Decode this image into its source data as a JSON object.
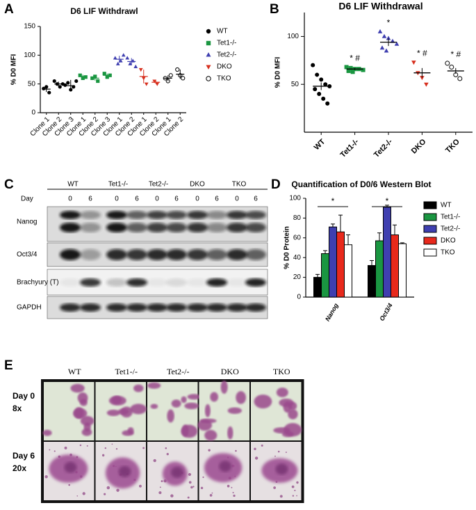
{
  "panel_labels": [
    "A",
    "B",
    "C",
    "D",
    "E"
  ],
  "chart_data": [
    {
      "type": "scatter",
      "title": "D6  LIF Withdrawl",
      "y_label": "%  D0 MFI",
      "categories": [
        "Clone 1",
        "Clone 2",
        "Clone 3",
        "Clone 1",
        "Clone 2",
        "Clone 3",
        "Clone 1",
        "Clone 2",
        "Clone 1",
        "Clone 2",
        "Clone 1",
        "Clone 2"
      ],
      "ylim": [
        0,
        150
      ],
      "yticks": [
        0,
        50,
        100,
        150
      ],
      "series": [
        {
          "name": "WT",
          "color": "#000000",
          "marker": "circle",
          "values": [
            41,
            50,
            47,
            null,
            null,
            null,
            null,
            null,
            null,
            null,
            null,
            null
          ],
          "errors": [
            5,
            4,
            10,
            null,
            null,
            null,
            null,
            null,
            null,
            null,
            null,
            null
          ],
          "points": [
            [
              42,
              45,
              35
            ],
            [
              55,
              50,
              45,
              50
            ],
            [
              48,
              52,
              40,
              45,
              55
            ],
            null,
            null,
            null,
            null,
            null,
            null,
            null,
            null,
            null
          ]
        },
        {
          "name": "Tet1-/-",
          "color": "#1a9641",
          "marker": "square",
          "values": [
            null,
            null,
            null,
            63,
            60,
            65,
            null,
            null,
            null,
            null,
            null,
            null
          ],
          "errors": [
            null,
            null,
            null,
            3,
            4,
            3,
            null,
            null,
            null,
            null,
            null,
            null
          ],
          "points": [
            null,
            null,
            null,
            [
              65,
              60,
              62
            ],
            [
              60,
              63,
              55
            ],
            [
              68,
              62,
              65
            ],
            null,
            null,
            null,
            null,
            null,
            null
          ]
        },
        {
          "name": "Tet2-/-",
          "color": "#3f3fb0",
          "marker": "triangle",
          "values": [
            null,
            null,
            null,
            null,
            null,
            null,
            93,
            89,
            null,
            null,
            null,
            null
          ],
          "errors": [
            null,
            null,
            null,
            null,
            null,
            null,
            6,
            6,
            null,
            null,
            null,
            null
          ],
          "points": [
            null,
            null,
            null,
            null,
            null,
            null,
            [
              95,
              85,
              90,
              100
            ],
            [
              95,
              85,
              90,
              80
            ],
            null,
            null,
            null,
            null
          ]
        },
        {
          "name": "DKO",
          "color": "#d7301f",
          "marker": "triangle-down",
          "values": [
            null,
            null,
            null,
            null,
            null,
            null,
            null,
            null,
            63,
            53,
            null,
            null
          ],
          "errors": [
            null,
            null,
            null,
            null,
            null,
            null,
            null,
            null,
            12,
            3,
            null,
            null
          ],
          "points": [
            null,
            null,
            null,
            null,
            null,
            null,
            null,
            null,
            [
              75,
              60,
              50
            ],
            [
              55,
              50
            ],
            null,
            null
          ]
        },
        {
          "name": "TKO",
          "color": "#000000",
          "marker": "open-circle",
          "values": [
            null,
            null,
            null,
            null,
            null,
            null,
            null,
            null,
            null,
            null,
            60,
            67
          ],
          "errors": [
            null,
            null,
            null,
            null,
            null,
            null,
            null,
            null,
            null,
            null,
            5,
            8
          ],
          "points": [
            null,
            null,
            null,
            null,
            null,
            null,
            null,
            null,
            null,
            null,
            [
              60,
              55,
              65
            ],
            [
              75,
              65,
              60
            ]
          ]
        }
      ]
    },
    {
      "type": "scatter",
      "title": "D6 LIF Withdrawal",
      "y_label": "% D0 MFI",
      "categories": [
        "WT",
        "Tet1-/-",
        "Tet2-/-",
        "DKO",
        "TKO"
      ],
      "ylim": [
        0,
        125
      ],
      "yticks": [
        50,
        100
      ],
      "colors": [
        "#000000",
        "#1a9641",
        "#3f3fb0",
        "#d7301f",
        "#000000"
      ],
      "markers": [
        "circle",
        "square",
        "triangle",
        "triangle-down",
        "open-circle"
      ],
      "values": [
        48,
        66,
        94,
        62,
        64
      ],
      "errors": [
        4,
        1,
        4,
        5,
        3
      ],
      "points": [
        [
          70,
          60,
          55,
          50,
          48,
          45,
          40,
          35,
          30
        ],
        [
          68,
          67,
          66,
          66,
          65,
          64,
          63
        ],
        [
          105,
          100,
          98,
          95,
          92,
          88,
          85
        ],
        [
          73,
          62,
          57,
          50
        ],
        [
          72,
          68,
          60,
          56
        ]
      ],
      "annotations": [
        null,
        "* #",
        "*",
        "* #",
        "* #"
      ]
    },
    {
      "type": "bar",
      "title": "Quantification of D0/6 Western Blot",
      "y_label": "% D0 Protein",
      "categories": [
        "Nanog",
        "Oct3/4"
      ],
      "ylim": [
        0,
        100
      ],
      "yticks": [
        0,
        20,
        40,
        60,
        80,
        100
      ],
      "significance": [
        "*",
        "*"
      ],
      "series": [
        {
          "name": "WT",
          "color": "#000000",
          "values": [
            20,
            32
          ],
          "errors": [
            3,
            5
          ]
        },
        {
          "name": "Tet1-/-",
          "color": "#1a9641",
          "values": [
            44,
            57
          ],
          "errors": [
            3,
            8
          ]
        },
        {
          "name": "Tet2-/-",
          "color": "#3f3fb0",
          "values": [
            71,
            91
          ],
          "errors": [
            3,
            2
          ]
        },
        {
          "name": "DKO",
          "color": "#e8291c",
          "values": [
            66,
            63
          ],
          "errors": [
            17,
            10
          ]
        },
        {
          "name": "TKO",
          "color": "#ffffff",
          "values": [
            53,
            54
          ],
          "errors": [
            10,
            1
          ]
        }
      ]
    }
  ],
  "blot": {
    "groups": [
      "WT",
      "Tet1-/-",
      "Tet2-/-",
      "DKO",
      "TKO"
    ],
    "day_label": "Day",
    "days": [
      "0",
      "6",
      "0",
      "6",
      "0",
      "6",
      "0",
      "6",
      "0",
      "6"
    ],
    "rows": [
      "Nanog",
      "Oct3/4",
      "Brachyury (T)",
      "GAPDH"
    ]
  },
  "micrographs": {
    "columns": [
      "WT",
      "Tet1-/-",
      "Tet2-/-",
      "DKO",
      "TKO"
    ],
    "rows": [
      {
        "day": "Day 0",
        "magnification": "8x"
      },
      {
        "day": "Day 6",
        "magnification": "20x"
      }
    ]
  }
}
